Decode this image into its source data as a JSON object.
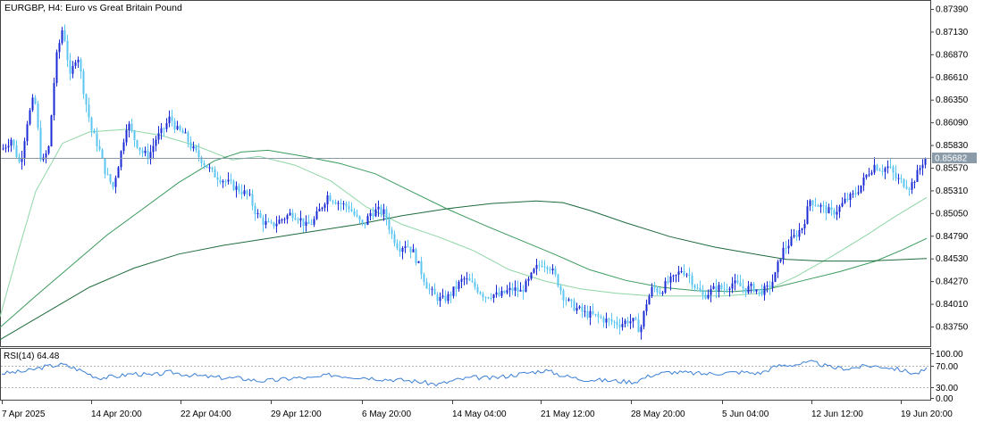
{
  "header": {
    "symbol_timeframe": "EURGBP, H4:",
    "description": "Euro vs Great Britain Pound"
  },
  "colors": {
    "candle_up": "#1a2bd6",
    "candle_down": "#5bc6f2",
    "ma_fast": "#8ed6a6",
    "ma_mid": "#3a9a5e",
    "ma_slow": "#1e6b3c",
    "current_price_line": "#8a9aa8",
    "current_price_label_bg": "#8a9aa8",
    "rsi_line": "#3a7fd5",
    "rsi_levels": "#b0b0b0"
  },
  "price_axis": {
    "ticks": [
      "0.87390",
      "0.87130",
      "0.86870",
      "0.86610",
      "0.86350",
      "0.86090",
      "0.85830",
      "0.85570",
      "0.85310",
      "0.85050",
      "0.84790",
      "0.84530",
      "0.84270",
      "0.84010",
      "0.83750"
    ],
    "current_price_label": "0.85682"
  },
  "time_axis": {
    "labels": [
      "7 Apr 2025",
      "14 Apr 20:00",
      "22 Apr 04:00",
      "29 Apr 12:00",
      "6 May 20:00",
      "14 May 04:00",
      "21 May 12:00",
      "28 May 20:00",
      "5 Jun 04:00",
      "12 Jun 12:00",
      "19 Jun 20:00"
    ]
  },
  "rsi": {
    "title": "RSI(14) 64.48",
    "ticks": [
      "100.00",
      "70.00",
      "30.00",
      "0.00"
    ]
  },
  "chart_data": {
    "type": "candlestick",
    "price_range": [
      0.8358,
      0.8742
    ],
    "current_price": 0.85682,
    "moving_averages": [
      {
        "points": [
          [
            0,
            0.8386
          ],
          [
            20,
            0.846
          ],
          [
            40,
            0.853
          ],
          [
            70,
            0.8585
          ],
          [
            100,
            0.8598
          ],
          [
            140,
            0.8601
          ],
          [
            180,
            0.8594
          ],
          [
            220,
            0.8582
          ],
          [
            260,
            0.8566
          ],
          [
            290,
            0.857
          ],
          [
            330,
            0.856
          ],
          [
            370,
            0.8542
          ],
          [
            410,
            0.8512
          ],
          [
            450,
            0.8492
          ],
          [
            490,
            0.8478
          ],
          [
            530,
            0.8462
          ],
          [
            570,
            0.844
          ],
          [
            610,
            0.8427
          ],
          [
            650,
            0.8418
          ],
          [
            690,
            0.8413
          ],
          [
            730,
            0.841
          ],
          [
            770,
            0.841
          ],
          [
            810,
            0.841
          ],
          [
            850,
            0.8413
          ],
          [
            890,
            0.8432
          ],
          [
            930,
            0.8455
          ],
          [
            970,
            0.848
          ],
          [
            1000,
            0.85
          ],
          [
            1037,
            0.8523
          ]
        ]
      },
      {
        "points": [
          [
            0,
            0.8374
          ],
          [
            40,
            0.841
          ],
          [
            80,
            0.8445
          ],
          [
            120,
            0.848
          ],
          [
            160,
            0.851
          ],
          [
            200,
            0.854
          ],
          [
            240,
            0.8565
          ],
          [
            270,
            0.8575
          ],
          [
            300,
            0.8577
          ],
          [
            340,
            0.857
          ],
          [
            380,
            0.8562
          ],
          [
            420,
            0.855
          ],
          [
            460,
            0.853
          ],
          [
            500,
            0.851
          ],
          [
            540,
            0.8492
          ],
          [
            580,
            0.8475
          ],
          [
            620,
            0.8458
          ],
          [
            660,
            0.844
          ],
          [
            700,
            0.8428
          ],
          [
            740,
            0.842
          ],
          [
            780,
            0.8416
          ],
          [
            820,
            0.8415
          ],
          [
            860,
            0.8418
          ],
          [
            900,
            0.8428
          ],
          [
            940,
            0.8438
          ],
          [
            980,
            0.845
          ],
          [
            1010,
            0.8463
          ],
          [
            1037,
            0.8476
          ]
        ]
      },
      {
        "points": [
          [
            0,
            0.836
          ],
          [
            50,
            0.839
          ],
          [
            100,
            0.842
          ],
          [
            150,
            0.8442
          ],
          [
            200,
            0.8458
          ],
          [
            250,
            0.8468
          ],
          [
            300,
            0.8476
          ],
          [
            350,
            0.8484
          ],
          [
            400,
            0.8492
          ],
          [
            450,
            0.8502
          ],
          [
            500,
            0.851
          ],
          [
            550,
            0.8516
          ],
          [
            600,
            0.8519
          ],
          [
            630,
            0.8517
          ],
          [
            660,
            0.8508
          ],
          [
            700,
            0.8494
          ],
          [
            750,
            0.8478
          ],
          [
            800,
            0.8466
          ],
          [
            850,
            0.8457
          ],
          [
            880,
            0.8452
          ],
          [
            920,
            0.845
          ],
          [
            970,
            0.845
          ],
          [
            1037,
            0.8453
          ]
        ]
      }
    ]
  }
}
